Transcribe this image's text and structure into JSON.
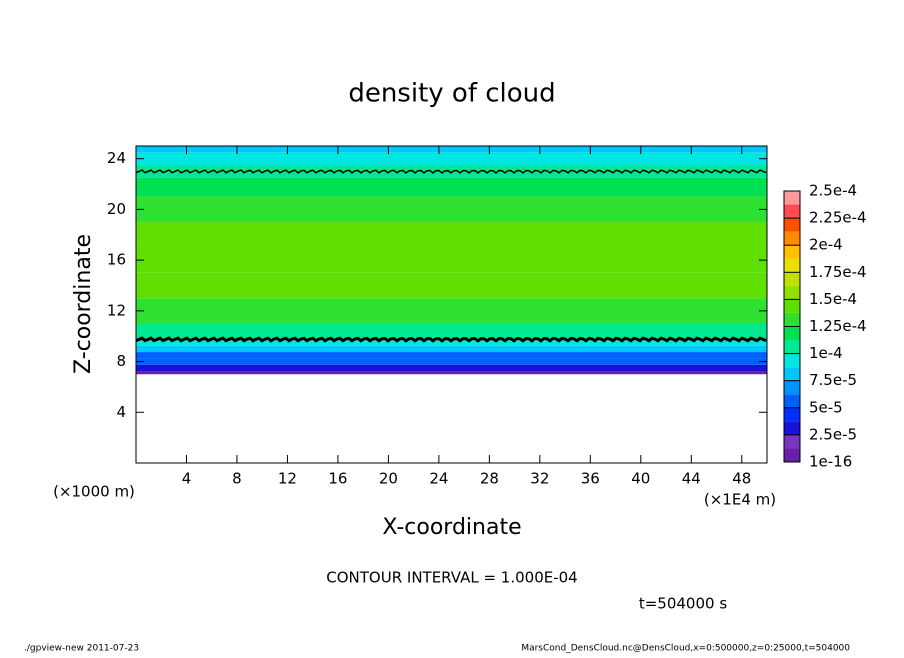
{
  "chart_data": {
    "type": "contour",
    "title": "density of cloud",
    "xlabel": "X-coordinate",
    "ylabel": "Z-coordinate",
    "x_unit_left": "(×1000 m)",
    "x_unit_right": "(×1E4 m)",
    "contour_note": "CONTOUR INTERVAL = 1.000E-04",
    "contour_level": 0.0001,
    "time_label": "t=504000 s",
    "footer_left": "./gpview-new  2011-07-23",
    "footer_right": "MarsCond_DensCloud.nc@DensCloud,x=0:500000,z=0:25000,t=504000",
    "xlim": [
      0,
      50
    ],
    "xticks": [
      4,
      8,
      12,
      16,
      20,
      24,
      28,
      32,
      36,
      40,
      44,
      48
    ],
    "ylim": [
      0,
      25
    ],
    "yticks": [
      4,
      8,
      12,
      16,
      20,
      24
    ],
    "profile": {
      "z": [
        7,
        7.5,
        8,
        8.5,
        9,
        9.5,
        10,
        12,
        14,
        16,
        18,
        20,
        22,
        23,
        24,
        25
      ],
      "values": [
        1e-05,
        3e-05,
        5e-05,
        6e-05,
        8e-05,
        9e-05,
        0.00011,
        0.00013,
        0.00014,
        0.00014,
        0.00014,
        0.00013,
        0.00012,
        0.0001,
        9e-05,
        8e-05
      ]
    },
    "colorbar": {
      "levels": [
        {
          "value": 1e-16,
          "label": "1e-16"
        },
        {
          "value": 2.5e-05,
          "label": "2.5e-5"
        },
        {
          "value": 5e-05,
          "label": "5e-5"
        },
        {
          "value": 7.5e-05,
          "label": "7.5e-5"
        },
        {
          "value": 0.0001,
          "label": "1e-4"
        },
        {
          "value": 0.000125,
          "label": "1.25e-4"
        },
        {
          "value": 0.00015,
          "label": "1.5e-4"
        },
        {
          "value": 0.000175,
          "label": "1.75e-4"
        },
        {
          "value": 0.0002,
          "label": "2e-4"
        },
        {
          "value": 0.000225,
          "label": "2.25e-4"
        },
        {
          "value": 0.00025,
          "label": "2.5e-4"
        }
      ],
      "colors": [
        "#6a1fa8",
        "#7a35c0",
        "#1a10d8",
        "#0030ff",
        "#0060ff",
        "#0094ff",
        "#00c8ff",
        "#00e6e0",
        "#00e890",
        "#00e050",
        "#30e030",
        "#60e000",
        "#90e000",
        "#c0e000",
        "#e8e000",
        "#ffc000",
        "#ff8c00",
        "#ff5000",
        "#ff4a50",
        "#ff9a9a"
      ]
    }
  }
}
